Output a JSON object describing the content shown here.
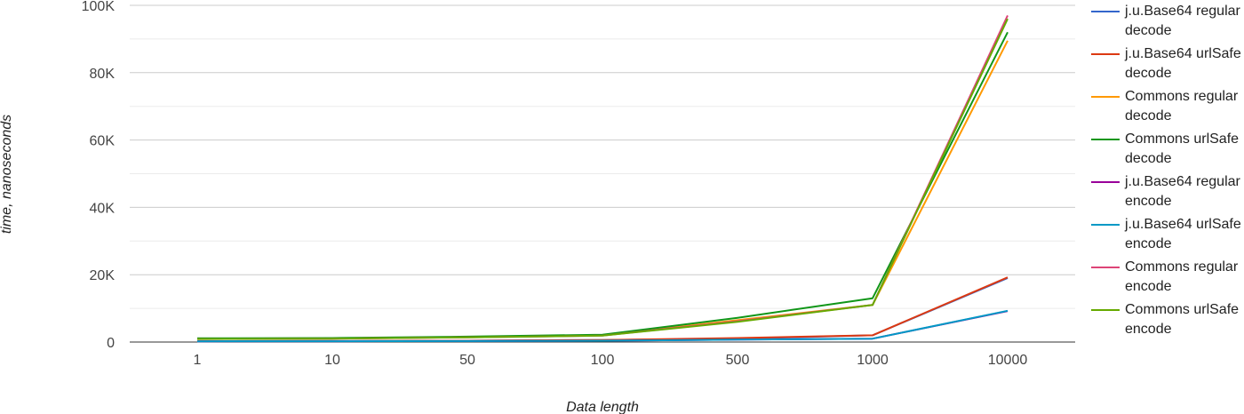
{
  "chart_data": {
    "type": "line",
    "title": "",
    "xlabel": "Data length",
    "ylabel": "time, nanoseconds",
    "categories": [
      "1",
      "10",
      "50",
      "100",
      "500",
      "1000",
      "10000"
    ],
    "yticks": [
      "0",
      "20K",
      "40K",
      "60K",
      "80K",
      "100K"
    ],
    "ylim": [
      0,
      100000
    ],
    "grid": true,
    "legend_position": "right",
    "series": [
      {
        "name": "j.u.Base64 regular decode",
        "color": "#3366cc",
        "values": [
          250,
          300,
          400,
          600,
          1000,
          2000,
          19000
        ]
      },
      {
        "name": "j.u.Base64 urlSafe decode",
        "color": "#dc3912",
        "values": [
          250,
          300,
          400,
          600,
          1200,
          2000,
          19200
        ]
      },
      {
        "name": "Commons regular decode",
        "color": "#ff9900",
        "values": [
          1000,
          1100,
          1500,
          2000,
          6500,
          11000,
          89500
        ]
      },
      {
        "name": "Commons urlSafe decode",
        "color": "#109618",
        "values": [
          1100,
          1200,
          1600,
          2200,
          7200,
          13000,
          92000
        ]
      },
      {
        "name": "j.u.Base64 regular encode",
        "color": "#990099",
        "values": [
          200,
          250,
          300,
          400,
          700,
          1000,
          9200
        ]
      },
      {
        "name": "j.u.Base64 urlSafe encode",
        "color": "#0099c6",
        "values": [
          200,
          250,
          300,
          400,
          700,
          1000,
          9300
        ]
      },
      {
        "name": "Commons regular encode",
        "color": "#dd4477",
        "values": [
          900,
          1000,
          1400,
          1900,
          6200,
          11000,
          97000
        ]
      },
      {
        "name": "Commons urlSafe encode",
        "color": "#66aa00",
        "values": [
          900,
          1000,
          1400,
          1900,
          6000,
          11000,
          96000
        ]
      }
    ]
  }
}
